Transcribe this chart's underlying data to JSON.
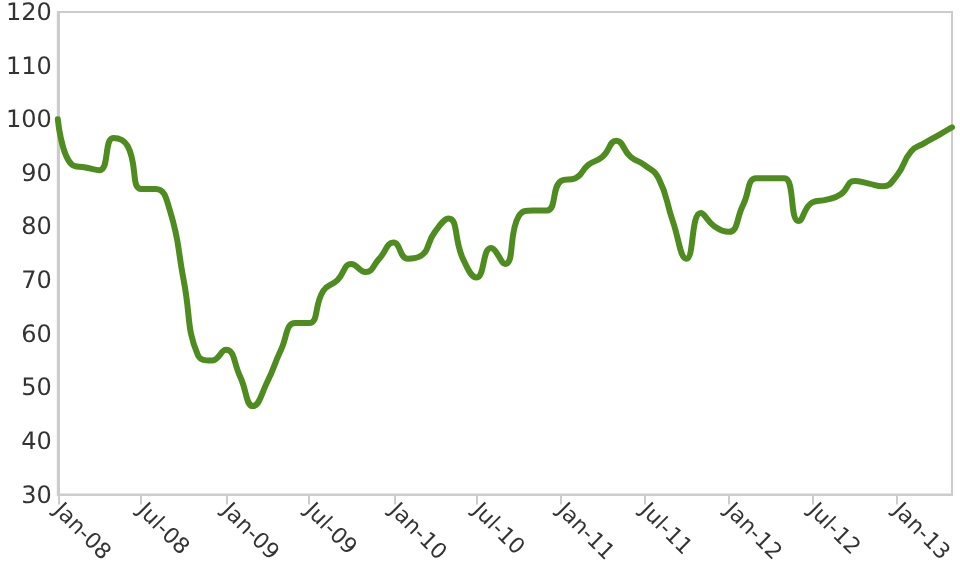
{
  "chart_data": {
    "type": "line",
    "x": [
      "2008-01",
      "2008-02",
      "2008-03",
      "2008-04",
      "2008-05",
      "2008-06",
      "2008-07",
      "2008-08",
      "2008-09",
      "2008-10",
      "2008-11",
      "2008-12",
      "2009-01",
      "2009-02",
      "2009-03",
      "2009-04",
      "2009-05",
      "2009-06",
      "2009-07",
      "2009-08",
      "2009-09",
      "2009-10",
      "2009-11",
      "2009-12",
      "2010-01",
      "2010-02",
      "2010-03",
      "2010-04",
      "2010-05",
      "2010-06",
      "2010-07",
      "2010-08",
      "2010-09",
      "2010-10",
      "2010-11",
      "2010-12",
      "2011-01",
      "2011-02",
      "2011-03",
      "2011-04",
      "2011-05",
      "2011-06",
      "2011-07",
      "2011-08",
      "2011-09",
      "2011-10",
      "2011-11",
      "2011-12",
      "2012-01",
      "2012-02",
      "2012-03",
      "2012-04",
      "2012-05",
      "2012-06",
      "2012-07",
      "2012-08",
      "2012-09",
      "2012-10",
      "2012-11",
      "2012-12",
      "2013-01",
      "2013-02",
      "2013-03",
      "2013-04",
      "2013-05"
    ],
    "series": [
      {
        "color": "#4e8c1f",
        "values": [
          100,
          91.5,
          91,
          90.5,
          96.5,
          95,
          87,
          87,
          83,
          70,
          56,
          55,
          57,
          52,
          46.5,
          51,
          57,
          62,
          62,
          68,
          70,
          73,
          71.5,
          74,
          77,
          74,
          74.5,
          79,
          81.5,
          74,
          70.5,
          76,
          73,
          82,
          83,
          83,
          88.5,
          89,
          91.5,
          93,
          96,
          93,
          91.5,
          89,
          81,
          74,
          82.5,
          80,
          79,
          84,
          89,
          89,
          89,
          81,
          84.5,
          85,
          86,
          88.5,
          88,
          87.5,
          89.5,
          94,
          95.5,
          97,
          98.5
        ]
      }
    ],
    "xlim": [
      "2008-01",
      "2013-05"
    ],
    "xticks": [
      {
        "value": "2008-01",
        "label": "Jan-08"
      },
      {
        "value": "2008-07",
        "label": "Jul-08"
      },
      {
        "value": "2009-01",
        "label": "Jan-09"
      },
      {
        "value": "2009-07",
        "label": "Jul-09"
      },
      {
        "value": "2010-01",
        "label": "Jan-10"
      },
      {
        "value": "2010-07",
        "label": "Jul-10"
      },
      {
        "value": "2011-01",
        "label": "Jan-11"
      },
      {
        "value": "2011-07",
        "label": "Jul-11"
      },
      {
        "value": "2012-01",
        "label": "Jan-12"
      },
      {
        "value": "2012-07",
        "label": "Jul-12"
      },
      {
        "value": "2013-01",
        "label": "Jan-13"
      }
    ],
    "ylim": [
      30,
      120
    ],
    "yticks": [
      30,
      40,
      50,
      60,
      70,
      80,
      90,
      100,
      110,
      120
    ],
    "grid": false,
    "marker": "none",
    "line_style": "solid"
  }
}
